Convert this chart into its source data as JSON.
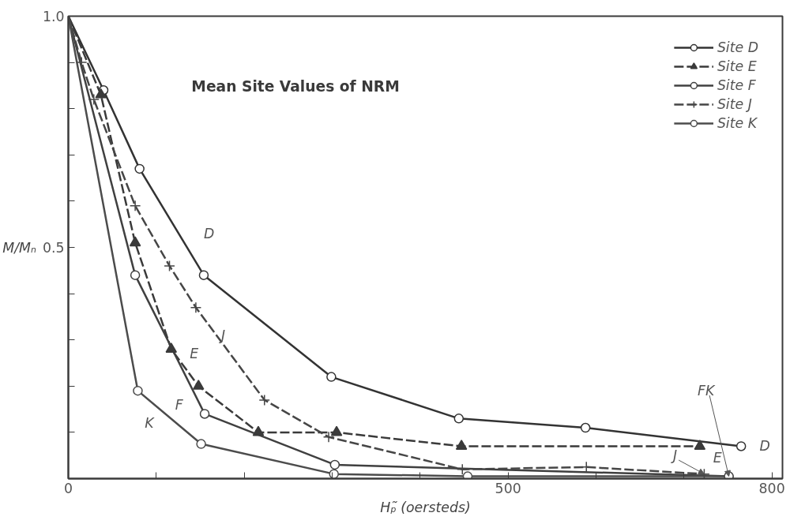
{
  "chart_data": {
    "type": "line",
    "title": "Mean Site Values of NRM",
    "xlabel": "Hₚ̃ (oersteds)",
    "ylabel": "M/Mₙ",
    "xlim": [
      0,
      812
    ],
    "ylim": [
      0,
      1.0
    ],
    "xticks": [
      {
        "value": 0,
        "label": "0"
      },
      {
        "value": 100,
        "label": null
      },
      {
        "value": 200,
        "label": null
      },
      {
        "value": 300,
        "label": null
      },
      {
        "value": 400,
        "label": null
      },
      500,
      {
        "value": 600,
        "label": null
      },
      {
        "value": 700,
        "label": null
      },
      800
    ],
    "yticks": [
      {
        "value": 0,
        "label": null
      },
      {
        "value": 0.1,
        "label": null
      },
      {
        "value": 0.2,
        "label": null
      },
      {
        "value": 0.3,
        "label": null
      },
      {
        "value": 0.4,
        "label": null
      },
      0.5,
      {
        "value": 0.6,
        "label": null
      },
      {
        "value": 0.7,
        "label": null
      },
      {
        "value": 0.8,
        "label": null
      },
      {
        "value": 0.9,
        "label": null
      },
      {
        "value": 1.0,
        "label": "1.0"
      }
    ],
    "grid": false,
    "legend": "top right",
    "series": [
      {
        "name": "Site D",
        "color": "#333333",
        "marker": "circle",
        "line_style": "solid",
        "x": [
          0,
          40,
          81,
          154,
          299,
          444,
          588,
          765
        ],
        "values": [
          1.0,
          0.84,
          0.67,
          0.44,
          0.22,
          0.13,
          0.11,
          0.07
        ]
      },
      {
        "name": "Site E",
        "color": "#3a3a3a",
        "marker": "triangle",
        "line_style": "dashed",
        "x": [
          0,
          37,
          76,
          117,
          148,
          216,
          305,
          447,
          718
        ],
        "values": [
          1.0,
          0.83,
          0.51,
          0.28,
          0.2,
          0.1,
          0.1,
          0.07,
          0.07
        ]
      },
      {
        "name": "Site F",
        "color": "#404040",
        "marker": "circle",
        "line_style": "solid",
        "x": [
          0,
          76,
          155,
          303,
          751
        ],
        "values": [
          1.0,
          0.44,
          0.14,
          0.03,
          0.005
        ]
      },
      {
        "name": "Site J",
        "color": "#464646",
        "marker": "cross",
        "line_style": "dashed",
        "x": [
          0,
          15,
          29,
          76,
          115,
          145,
          223,
          296,
          448,
          589,
          723
        ],
        "values": [
          1.0,
          0.9,
          0.82,
          0.59,
          0.46,
          0.37,
          0.17,
          0.09,
          0.02,
          0.025,
          0.01
        ]
      },
      {
        "name": "Site K",
        "color": "#4c4c4c",
        "marker": "circle",
        "line_style": "solid",
        "x": [
          0,
          79,
          151,
          302,
          454,
          751
        ],
        "values": [
          1.0,
          0.19,
          0.075,
          0.01,
          0.005,
          0.005
        ]
      }
    ],
    "annotations": [
      "D",
      "J",
      "E",
      "F",
      "K",
      "D",
      "E",
      {
        "text": "J",
        "x": 723,
        "y": 0.01
      },
      {
        "text": "FK",
        "x": 751,
        "y": 0.005
      }
    ]
  }
}
